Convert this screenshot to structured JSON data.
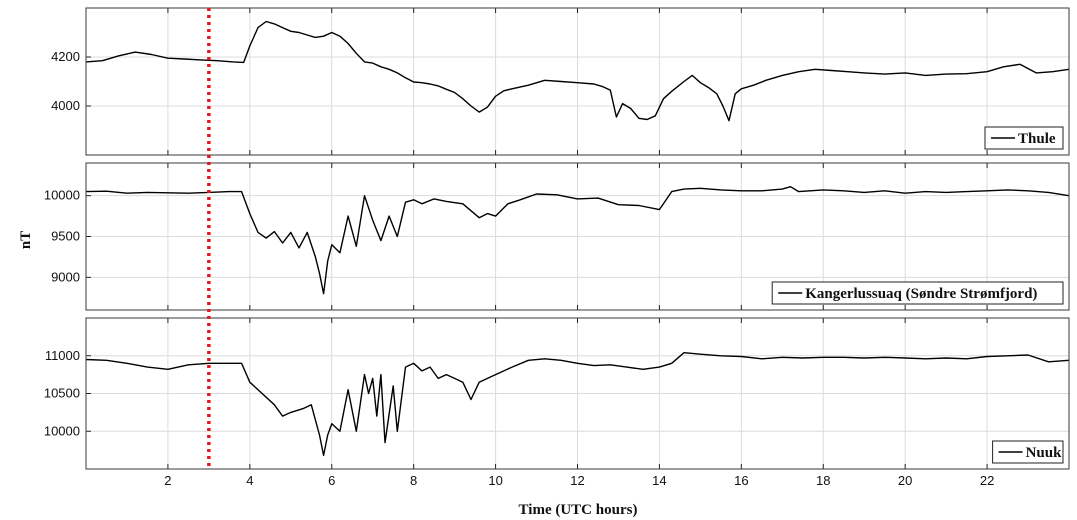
{
  "chart_data": {
    "type": "line",
    "xlabel": "Time (UTC hours)",
    "ylabel": "nT",
    "xlim": [
      0,
      24
    ],
    "xticks": [
      2,
      4,
      6,
      8,
      10,
      12,
      14,
      16,
      18,
      20,
      22
    ],
    "grid": true,
    "marker_line": {
      "x": 3,
      "color": "#e8141c",
      "style": "dotted"
    },
    "panels": [
      {
        "legend": "Thule",
        "legend_position": "bottom-right",
        "ylim": [
          3800,
          4400
        ],
        "yticks": [
          4000,
          4200
        ],
        "series": [
          {
            "name": "Thule",
            "color": "#000000",
            "x": [
              0,
              0.4,
              0.8,
              1.2,
              1.6,
              2.0,
              2.4,
              2.8,
              3.2,
              3.6,
              3.85,
              4.0,
              4.2,
              4.4,
              4.6,
              4.8,
              5.0,
              5.2,
              5.4,
              5.6,
              5.8,
              6.0,
              6.2,
              6.4,
              6.6,
              6.8,
              7.0,
              7.2,
              7.4,
              7.6,
              7.8,
              8.0,
              8.2,
              8.4,
              8.6,
              8.8,
              9.0,
              9.2,
              9.4,
              9.6,
              9.8,
              10.0,
              10.2,
              10.4,
              10.8,
              11.2,
              11.6,
              12.0,
              12.4,
              12.6,
              12.8,
              12.95,
              13.1,
              13.3,
              13.5,
              13.7,
              13.9,
              14.1,
              14.3,
              14.6,
              14.8,
              15.0,
              15.2,
              15.4,
              15.55,
              15.7,
              15.85,
              16.0,
              16.3,
              16.6,
              17.0,
              17.4,
              17.8,
              18.2,
              18.6,
              19.0,
              19.5,
              20.0,
              20.5,
              21.0,
              21.5,
              22.0,
              22.4,
              22.8,
              23.2,
              23.6,
              24.0
            ],
            "values": [
              4180,
              4185,
              4205,
              4220,
              4210,
              4195,
              4192,
              4188,
              4185,
              4180,
              4178,
              4245,
              4320,
              4345,
              4335,
              4320,
              4305,
              4300,
              4290,
              4280,
              4285,
              4300,
              4285,
              4255,
              4215,
              4180,
              4175,
              4160,
              4150,
              4135,
              4115,
              4098,
              4095,
              4090,
              4082,
              4068,
              4055,
              4030,
              4000,
              3975,
              3995,
              4040,
              4062,
              4070,
              4085,
              4105,
              4100,
              4095,
              4090,
              4080,
              4065,
              3955,
              4010,
              3990,
              3950,
              3945,
              3960,
              4030,
              4060,
              4100,
              4125,
              4095,
              4075,
              4050,
              4000,
              3940,
              4050,
              4070,
              4085,
              4105,
              4125,
              4140,
              4150,
              4145,
              4140,
              4135,
              4130,
              4135,
              4125,
              4130,
              4132,
              4140,
              4160,
              4170,
              4135,
              4140,
              4150
            ]
          }
        ]
      },
      {
        "legend": "Kangerlussuaq (Søndre Strømfjord)",
        "legend_position": "bottom-right",
        "ylim": [
          8600,
          10400
        ],
        "yticks": [
          9000,
          9500,
          10000
        ],
        "series": [
          {
            "name": "Kangerlussuaq (Søndre Strømfjord)",
            "color": "#000000",
            "x": [
              0,
              0.5,
              1.0,
              1.5,
              2.0,
              2.5,
              3.0,
              3.5,
              3.8,
              4.0,
              4.2,
              4.4,
              4.6,
              4.8,
              5.0,
              5.2,
              5.4,
              5.6,
              5.7,
              5.8,
              5.9,
              6.0,
              6.2,
              6.4,
              6.6,
              6.8,
              7.0,
              7.2,
              7.4,
              7.6,
              7.8,
              8.0,
              8.2,
              8.5,
              8.8,
              9.2,
              9.6,
              9.8,
              10.0,
              10.3,
              10.6,
              11.0,
              11.5,
              12.0,
              12.5,
              13.0,
              13.5,
              14.0,
              14.3,
              14.6,
              15.0,
              15.5,
              16.0,
              16.5,
              17.0,
              17.2,
              17.4,
              18.0,
              18.5,
              19.0,
              19.5,
              20.0,
              20.5,
              21.0,
              21.5,
              22.0,
              22.5,
              23.0,
              23.5,
              24.0
            ],
            "values": [
              10050,
              10055,
              10030,
              10040,
              10035,
              10030,
              10040,
              10050,
              10050,
              9780,
              9550,
              9480,
              9560,
              9420,
              9550,
              9360,
              9550,
              9250,
              9050,
              8800,
              9200,
              9400,
              9300,
              9750,
              9380,
              10000,
              9700,
              9450,
              9750,
              9500,
              9920,
              9950,
              9900,
              9960,
              9930,
              9900,
              9730,
              9780,
              9750,
              9900,
              9950,
              10020,
              10010,
              9960,
              9970,
              9890,
              9880,
              9830,
              10050,
              10080,
              10090,
              10070,
              10060,
              10060,
              10080,
              10110,
              10050,
              10070,
              10060,
              10040,
              10060,
              10030,
              10050,
              10040,
              10050,
              10060,
              10070,
              10060,
              10040,
              10000
            ]
          }
        ]
      },
      {
        "legend": "Nuuk",
        "legend_position": "bottom-right",
        "ylim": [
          9500,
          11500
        ],
        "yticks": [
          10000,
          10500,
          11000
        ],
        "series": [
          {
            "name": "Nuuk",
            "color": "#000000",
            "x": [
              0,
              0.5,
              1.0,
              1.5,
              2.0,
              2.5,
              3.0,
              3.5,
              3.8,
              4.0,
              4.3,
              4.6,
              4.8,
              5.0,
              5.3,
              5.5,
              5.6,
              5.7,
              5.8,
              5.9,
              6.0,
              6.2,
              6.4,
              6.6,
              6.8,
              6.9,
              7.0,
              7.1,
              7.2,
              7.3,
              7.5,
              7.6,
              7.8,
              8.0,
              8.2,
              8.4,
              8.6,
              8.8,
              9.0,
              9.2,
              9.4,
              9.6,
              9.8,
              10.0,
              10.4,
              10.8,
              11.2,
              11.6,
              12.0,
              12.4,
              12.8,
              13.2,
              13.6,
              14.0,
              14.3,
              14.6,
              15.0,
              15.5,
              16.0,
              16.5,
              17.0,
              17.5,
              18.0,
              18.5,
              19.0,
              19.5,
              20.0,
              20.5,
              21.0,
              21.5,
              22.0,
              22.5,
              23.0,
              23.5,
              24.0
            ],
            "values": [
              10950,
              10940,
              10900,
              10850,
              10820,
              10880,
              10900,
              10900,
              10900,
              10650,
              10500,
              10350,
              10200,
              10250,
              10300,
              10350,
              10150,
              9950,
              9680,
              9950,
              10100,
              10000,
              10550,
              10000,
              10750,
              10500,
              10700,
              10200,
              10750,
              9850,
              10600,
              10000,
              10850,
              10900,
              10800,
              10850,
              10700,
              10750,
              10700,
              10650,
              10420,
              10650,
              10700,
              10750,
              10850,
              10940,
              10960,
              10940,
              10900,
              10870,
              10880,
              10850,
              10820,
              10850,
              10900,
              11040,
              11020,
              11000,
              10990,
              10960,
              10980,
              10970,
              10980,
              10980,
              10970,
              10980,
              10970,
              10960,
              10970,
              10960,
              10990,
              11000,
              11010,
              10920,
              10940
            ]
          }
        ]
      }
    ]
  }
}
